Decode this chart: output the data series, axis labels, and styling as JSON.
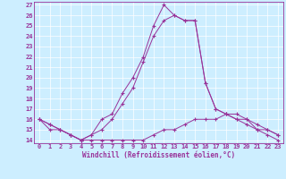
{
  "background_color": "#cdeeff",
  "line_color": "#993399",
  "grid_color": "#aaddcc",
  "spine_color": "#993399",
  "xlabel": "Windchill (Refroidissement éolien,°C)",
  "xlim": [
    -0.5,
    23.5
  ],
  "ylim": [
    13.7,
    27.3
  ],
  "yticks": [
    14,
    15,
    16,
    17,
    18,
    19,
    20,
    21,
    22,
    23,
    24,
    25,
    26,
    27
  ],
  "xticks": [
    0,
    1,
    2,
    3,
    4,
    5,
    6,
    7,
    8,
    9,
    10,
    11,
    12,
    13,
    14,
    15,
    16,
    17,
    18,
    19,
    20,
    21,
    22,
    23
  ],
  "line1_x": [
    0,
    1,
    2,
    3,
    4,
    5,
    6,
    7,
    8,
    9,
    10,
    11,
    12,
    13,
    14,
    15,
    16,
    17,
    18,
    19,
    20,
    21,
    22,
    23
  ],
  "line1_y": [
    16.0,
    15.5,
    15.0,
    14.5,
    14.0,
    14.5,
    16.0,
    16.5,
    18.5,
    20.0,
    22.0,
    25.0,
    27.0,
    26.0,
    25.5,
    25.5,
    19.5,
    17.0,
    16.5,
    16.0,
    15.5,
    15.0,
    15.0,
    14.5
  ],
  "line2_x": [
    0,
    1,
    2,
    3,
    4,
    5,
    6,
    7,
    8,
    9,
    10,
    11,
    12,
    13,
    14,
    15,
    16,
    17,
    18,
    19,
    20,
    21,
    22,
    23
  ],
  "line2_y": [
    16.0,
    15.5,
    15.0,
    14.5,
    14.0,
    14.5,
    15.0,
    16.0,
    17.5,
    19.0,
    21.5,
    24.0,
    25.5,
    26.0,
    25.5,
    25.5,
    19.5,
    17.0,
    16.5,
    16.5,
    16.0,
    15.5,
    15.0,
    14.5
  ],
  "line3_x": [
    0,
    1,
    2,
    3,
    4,
    5,
    6,
    7,
    8,
    9,
    10,
    11,
    12,
    13,
    14,
    15,
    16,
    17,
    18,
    19,
    20,
    21,
    22,
    23
  ],
  "line3_y": [
    16.0,
    15.0,
    15.0,
    14.5,
    14.0,
    14.0,
    14.0,
    14.0,
    14.0,
    14.0,
    14.0,
    14.5,
    15.0,
    15.0,
    15.5,
    16.0,
    16.0,
    16.0,
    16.5,
    16.0,
    16.0,
    15.0,
    14.5,
    14.0
  ],
  "tick_fontsize": 5.0,
  "xlabel_fontsize": 5.5
}
